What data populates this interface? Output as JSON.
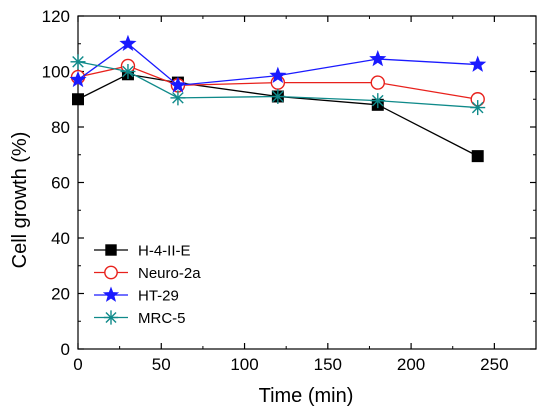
{
  "chart_data": {
    "type": "line",
    "xlabel": "Time (min)",
    "ylabel": "Cell growth (%)",
    "xlim": [
      0,
      275
    ],
    "ylim": [
      0,
      120
    ],
    "xticks": [
      0,
      50,
      100,
      150,
      200,
      250
    ],
    "yticks": [
      0,
      20,
      40,
      60,
      80,
      100,
      120
    ],
    "xtick_labels": [
      "0",
      "50",
      "100",
      "150",
      "200",
      "250"
    ],
    "ytick_labels": [
      "0",
      "20",
      "40",
      "60",
      "80",
      "100",
      "120"
    ],
    "grid": false,
    "legend_position": "bottom-left",
    "series": [
      {
        "name": "H-4-II-E",
        "color": "#000000",
        "marker": "square",
        "points": [
          [
            0,
            90
          ],
          [
            30,
            99
          ],
          [
            60,
            96
          ],
          [
            120,
            91
          ],
          [
            180,
            88
          ],
          [
            240,
            69.5
          ]
        ]
      },
      {
        "name": "Neuro-2a",
        "color": "#e8211c",
        "marker": "circle-open",
        "points": [
          [
            0,
            98
          ],
          [
            30,
            102
          ],
          [
            60,
            95
          ],
          [
            120,
            96
          ],
          [
            180,
            96
          ],
          [
            240,
            90
          ]
        ]
      },
      {
        "name": "HT-29",
        "color": "#1a1aff",
        "marker": "star",
        "points": [
          [
            0,
            97
          ],
          [
            30,
            110
          ],
          [
            60,
            95
          ],
          [
            120,
            98.5
          ],
          [
            180,
            104.5
          ],
          [
            240,
            102.5
          ]
        ]
      },
      {
        "name": "MRC-5",
        "color": "#0f8a8a",
        "marker": "asterisk",
        "points": [
          [
            0,
            103.5
          ],
          [
            30,
            100
          ],
          [
            60,
            90.5
          ],
          [
            120,
            91
          ],
          [
            180,
            89.5
          ],
          [
            240,
            87
          ]
        ]
      }
    ]
  }
}
